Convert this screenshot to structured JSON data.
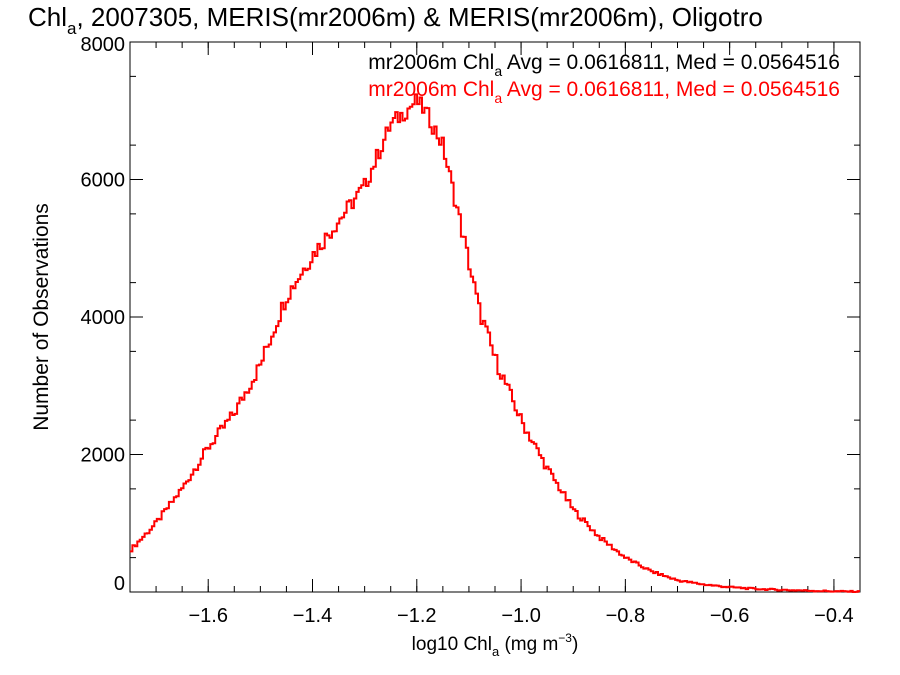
{
  "chart_data": {
    "type": "line",
    "title": {
      "prefix": "Chl",
      "sub": "a",
      "rest": ", 2007305, MERIS(mr2006m) & MERIS(mr2006m), Oligotro"
    },
    "xlabel": {
      "prefix": "log10 Chl",
      "sub": "a",
      "mid": " (mg m",
      "sup": "−3",
      "suffix": ")"
    },
    "ylabel": "Number of Observations",
    "xlim": [
      -1.75,
      -0.35
    ],
    "ylim": [
      0,
      8000
    ],
    "x_ticks": [
      -1.6,
      -1.4,
      -1.2,
      -1.0,
      -0.8,
      -0.6,
      -0.4
    ],
    "x_tick_labels": [
      "−1.6",
      "−1.4",
      "−1.2",
      "−1.0",
      "−0.8",
      "−0.6",
      "−0.4"
    ],
    "y_ticks": [
      0,
      2000,
      4000,
      6000,
      8000
    ],
    "y_tick_labels": [
      "0",
      "2000",
      "4000",
      "6000",
      "8000"
    ],
    "grid": false,
    "legend": [
      {
        "prefix": "mr2006m Chl",
        "sub": "a",
        "rest": " Avg = 0.0616811, Med = 0.0564516",
        "color": "#000000"
      },
      {
        "prefix": "mr2006m Chl",
        "sub": "a",
        "rest": " Avg = 0.0616811, Med = 0.0564516",
        "color": "#ff0000"
      }
    ],
    "series": [
      {
        "color": "#ff0000",
        "x": [
          -1.75,
          -1.7,
          -1.65,
          -1.6,
          -1.55,
          -1.5,
          -1.45,
          -1.4,
          -1.35,
          -1.3,
          -1.25,
          -1.22,
          -1.2,
          -1.18,
          -1.15,
          -1.12,
          -1.1,
          -1.08,
          -1.05,
          -1.0,
          -0.95,
          -0.9,
          -0.85,
          -0.8,
          -0.75,
          -0.7,
          -0.65,
          -0.6,
          -0.55,
          -0.5,
          -0.45,
          -0.4,
          -0.35
        ],
        "values": [
          600,
          1000,
          1500,
          2100,
          2600,
          3300,
          4300,
          4900,
          5400,
          5900,
          6800,
          7000,
          7150,
          6950,
          6500,
          5500,
          4800,
          4100,
          3400,
          2500,
          1800,
          1200,
          800,
          500,
          300,
          170,
          110,
          70,
          45,
          30,
          20,
          10,
          5
        ]
      }
    ]
  }
}
